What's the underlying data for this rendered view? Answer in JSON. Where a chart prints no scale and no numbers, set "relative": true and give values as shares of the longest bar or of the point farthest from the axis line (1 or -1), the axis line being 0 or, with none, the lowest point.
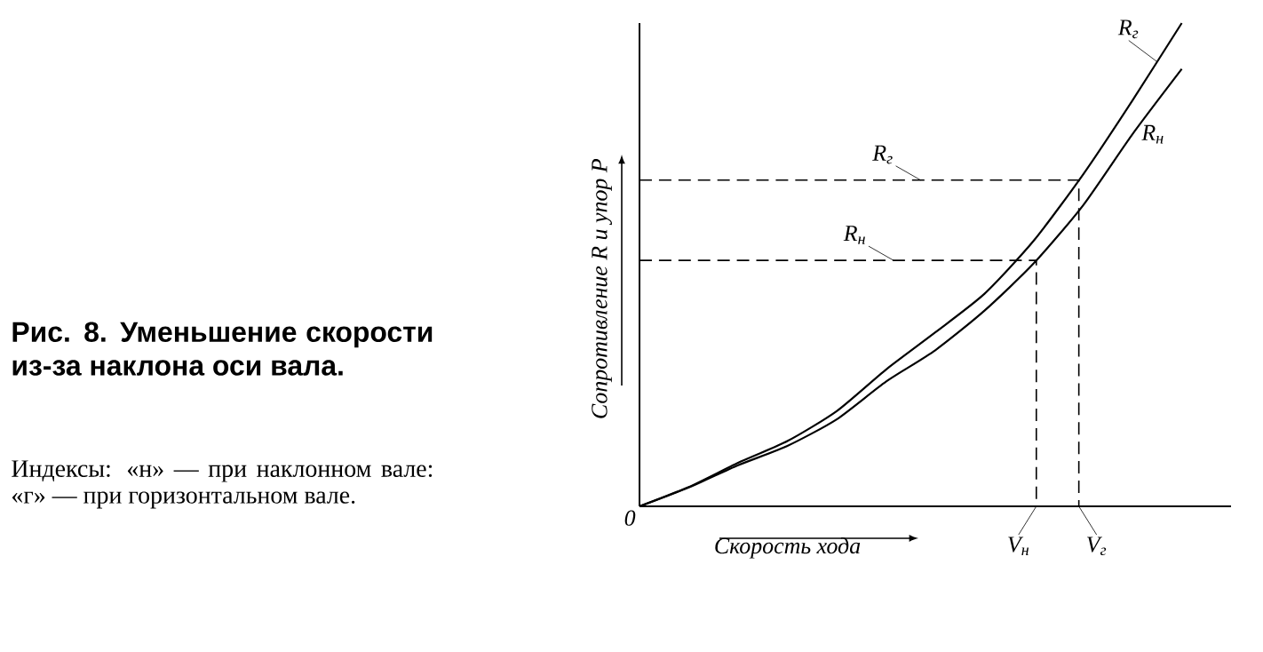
{
  "chart_data": {
    "type": "line",
    "relative": true,
    "title": "Рис. 8. Уменьшение скорости из-за наклона оси вала.",
    "subtitle": "Индексы: «н» — при наклонном вале: «г» — при горизонтальном вале.",
    "xlabel": "Скорость хода",
    "ylabel": "Сопротивление R и упор P",
    "legend": false,
    "marker": "none",
    "line_style": "solid",
    "categories": [
      null,
      null,
      null,
      null,
      null,
      null,
      null,
      null,
      null,
      null,
      null,
      null,
      null
    ],
    "series": [
      {
        "name": "R$_{г}$",
        "color": "#000000",
        "values": [
          0,
          0.04,
          0.09,
          0.135,
          0.197,
          0.283,
          0.36,
          0.44,
          0.55,
          0.687,
          0.84,
          1,
          null
        ]
      },
      {
        "name": "R$_{н}$",
        "color": "#000000",
        "values": [
          0,
          0.039,
          0.085,
          0.125,
          0.18,
          0.258,
          0.323,
          0.405,
          0.503,
          0.623,
          0.77,
          0.905,
          null
        ]
      }
    ],
    "ref_lines": [
      {
        "axis": "y",
        "value": 0.675,
        "label": "R$_{г}$",
        "line_style": "dashed"
      },
      {
        "axis": "y",
        "value": 0.509,
        "label": "R$_{н}$",
        "line_style": "dashed"
      }
    ],
    "annotations": [
      "0",
      "V$_{г}$",
      "V$_{н}$"
    ]
  }
}
